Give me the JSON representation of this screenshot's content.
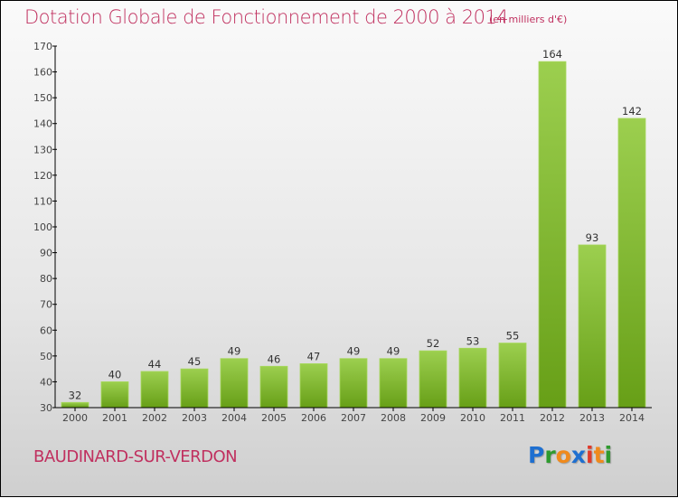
{
  "header": {
    "title": "Dotation Globale de Fonctionnement de 2000 à 2014",
    "unit_note": "(en milliers d'€)"
  },
  "footer": {
    "commune": "BAUDINARD-SUR-VERDON",
    "logo": {
      "text": "Proxiti",
      "letters": [
        {
          "ch": "P",
          "color": "#1e6fd0"
        },
        {
          "ch": "r",
          "color": "#2e9a2e"
        },
        {
          "ch": "o",
          "color": "#f08a1c"
        },
        {
          "ch": "x",
          "color": "#1e6fd0"
        },
        {
          "ch": "i",
          "color": "#e03a2a"
        },
        {
          "ch": "t",
          "color": "#f08a1c"
        },
        {
          "ch": "i",
          "color": "#2e9a2e"
        }
      ]
    }
  },
  "colors": {
    "title": "#c0305f",
    "bar_light": "#9ccf4f",
    "bar_dark": "#679f17",
    "axis": "#000000"
  },
  "chart_data": {
    "type": "bar",
    "title": "Dotation Globale de Fonctionnement de 2000 à 2014",
    "subtitle": "(en milliers d'€)",
    "xlabel": "",
    "ylabel": "",
    "categories": [
      "2000",
      "2001",
      "2002",
      "2003",
      "2004",
      "2005",
      "2006",
      "2007",
      "2008",
      "2009",
      "2010",
      "2011",
      "2012",
      "2013",
      "2014"
    ],
    "values": [
      32,
      40,
      44,
      45,
      49,
      46,
      47,
      49,
      49,
      52,
      53,
      55,
      164,
      93,
      142
    ],
    "ylim": [
      30,
      170
    ],
    "yticks": [
      30,
      40,
      50,
      60,
      70,
      80,
      90,
      100,
      110,
      120,
      130,
      140,
      150,
      160,
      170
    ],
    "grid": false,
    "legend": "none",
    "data_labels": true
  }
}
